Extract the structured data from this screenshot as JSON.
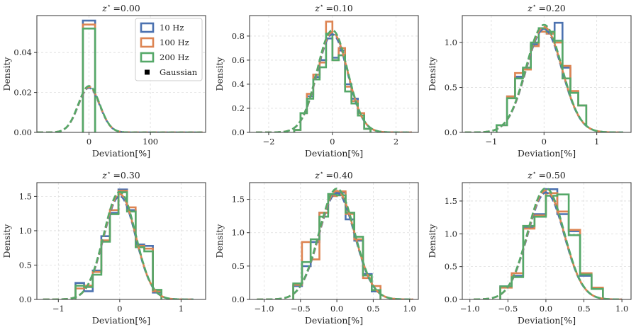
{
  "figure": {
    "colors": {
      "10 Hz": "#4c72b0",
      "100 Hz": "#dd8452",
      "200 Hz": "#55a868"
    },
    "legend": {
      "placement": "top-right of first panel",
      "entries": [
        {
          "label": "10 Hz",
          "color": "#4c72b0"
        },
        {
          "label": "100 Hz",
          "color": "#dd8452"
        },
        {
          "label": "200 Hz",
          "color": "#55a868"
        },
        {
          "label": "Gaussian",
          "color": "#000000"
        }
      ]
    }
  },
  "chart_data": [
    {
      "type": "histogram",
      "title": "z* =0.00",
      "title_value": "=0.00",
      "xlabel": "Deviation[%]",
      "ylabel": "Density",
      "xlim": [
        -85,
        190
      ],
      "ylim": [
        0,
        0.0585
      ],
      "xticks": [
        0,
        100
      ],
      "xtick_labels": [
        "0",
        "100"
      ],
      "yticks": [
        0,
        0.02,
        0.04
      ],
      "ytick_labels": [
        "0.00",
        "0.02",
        "0.04"
      ],
      "gaussian": {
        "mu": 0,
        "sigma": 17.5,
        "xmin": -85,
        "xmax": 185
      },
      "series": [
        {
          "name": "10 Hz",
          "edges": [
            -10,
            0,
            10
          ],
          "values": [
            0.056,
            0.056
          ]
        },
        {
          "name": "100 Hz",
          "edges": [
            -10,
            0,
            10
          ],
          "values": [
            0.054,
            0.054
          ]
        },
        {
          "name": "200 Hz",
          "edges": [
            -10,
            0,
            10
          ],
          "values": [
            0.052,
            0.052
          ]
        }
      ]
    },
    {
      "type": "histogram",
      "title": "z* =0.10",
      "title_value": "=0.10",
      "xlabel": "Deviation[%]",
      "ylabel": "Density",
      "xlim": [
        -2.6,
        2.7
      ],
      "ylim": [
        0,
        0.97
      ],
      "xticks": [
        -2,
        0,
        2
      ],
      "xtick_labels": [
        "−2",
        "0",
        "2"
      ],
      "yticks": [
        0,
        0.2,
        0.4,
        0.6,
        0.8
      ],
      "ytick_labels": [
        "0.0",
        "0.2",
        "0.4",
        "0.6",
        "0.8"
      ],
      "gaussian": {
        "mu": 0,
        "sigma": 0.48,
        "xmin": -2.4,
        "xmax": 2.5
      },
      "series": [
        {
          "name": "10 Hz",
          "edges": [
            -1.2,
            -1.0,
            -0.8,
            -0.6,
            -0.4,
            -0.2,
            0,
            0.2,
            0.4,
            0.6,
            0.8,
            1.0,
            1.2
          ],
          "values": [
            0.02,
            0.16,
            0.3,
            0.46,
            0.6,
            0.78,
            0.62,
            0.68,
            0.4,
            0.28,
            0.16,
            0.03
          ]
        },
        {
          "name": "100 Hz",
          "edges": [
            -1.2,
            -1.0,
            -0.8,
            -0.6,
            -0.4,
            -0.2,
            0,
            0.2,
            0.4,
            0.6,
            0.8,
            1.0,
            1.2
          ],
          "values": [
            0.02,
            0.16,
            0.32,
            0.48,
            0.58,
            0.92,
            0.6,
            0.7,
            0.38,
            0.26,
            0.16,
            0.03
          ]
        },
        {
          "name": "200 Hz",
          "edges": [
            -1.2,
            -1.0,
            -0.8,
            -0.6,
            -0.4,
            -0.2,
            0,
            0.2,
            0.4,
            0.6,
            0.8,
            1.0,
            1.2
          ],
          "values": [
            0.02,
            0.16,
            0.28,
            0.44,
            0.54,
            0.82,
            0.6,
            0.64,
            0.34,
            0.24,
            0.14,
            0.03
          ]
        }
      ]
    },
    {
      "type": "histogram",
      "title": "z* =0.20",
      "title_value": "=0.20",
      "xlabel": "Deviation[%]",
      "ylabel": "Density",
      "xlim": [
        -1.55,
        1.65
      ],
      "ylim": [
        0,
        1.3
      ],
      "xticks": [
        -1,
        0,
        1
      ],
      "xtick_labels": [
        "−1",
        "0",
        "1"
      ],
      "yticks": [
        0,
        0.5,
        1.0
      ],
      "ytick_labels": [
        "0.0",
        "0.5",
        "1.0"
      ],
      "gaussian": {
        "mu": 0,
        "sigma": 0.34,
        "xmin": -1.5,
        "xmax": 1.5
      },
      "series": [
        {
          "name": "10 Hz",
          "edges": [
            -0.9,
            -0.7,
            -0.55,
            -0.4,
            -0.25,
            -0.1,
            0.05,
            0.2,
            0.35,
            0.5,
            0.65,
            0.8
          ],
          "values": [
            0.08,
            0.4,
            0.62,
            0.7,
            0.98,
            1.15,
            1.1,
            1.22,
            0.72,
            0.44,
            0.3,
            0.08
          ]
        },
        {
          "name": "100 Hz",
          "edges": [
            -0.9,
            -0.7,
            -0.55,
            -0.4,
            -0.25,
            -0.1,
            0.05,
            0.2,
            0.35,
            0.5,
            0.65,
            0.8
          ],
          "values": [
            0.08,
            0.4,
            0.66,
            0.7,
            0.96,
            1.12,
            1.1,
            1.0,
            0.74,
            0.46,
            0.3,
            0.08
          ]
        },
        {
          "name": "200 Hz",
          "edges": [
            -0.9,
            -0.7,
            -0.55,
            -0.4,
            -0.25,
            -0.1,
            0.05,
            0.2,
            0.35,
            0.5,
            0.65,
            0.8
          ],
          "values": [
            0.08,
            0.38,
            0.6,
            0.72,
            1.0,
            1.16,
            1.12,
            1.02,
            0.6,
            0.44,
            0.3,
            0.08
          ]
        }
      ]
    },
    {
      "type": "histogram",
      "title": "z* =0.30",
      "title_value": "=0.30",
      "xlabel": "Deviation[%]",
      "ylabel": "Density",
      "xlim": [
        -1.35,
        1.4
      ],
      "ylim": [
        0,
        1.7
      ],
      "xticks": [
        -1,
        0,
        1
      ],
      "xtick_labels": [
        "−1",
        "0",
        "1"
      ],
      "yticks": [
        0,
        0.5,
        1.0,
        1.5
      ],
      "ytick_labels": [
        "0.0",
        "0.5",
        "1.0",
        "1.5"
      ],
      "gaussian": {
        "mu": 0,
        "sigma": 0.26,
        "xmin": -1.25,
        "xmax": 1.2
      },
      "series": [
        {
          "name": "10 Hz",
          "edges": [
            -0.72,
            -0.58,
            -0.44,
            -0.3,
            -0.16,
            -0.02,
            0.12,
            0.26,
            0.4,
            0.54,
            0.68
          ],
          "values": [
            0.24,
            0.12,
            0.42,
            0.92,
            1.26,
            1.6,
            1.3,
            0.8,
            0.78,
            0.1
          ]
        },
        {
          "name": "100 Hz",
          "edges": [
            -0.72,
            -0.58,
            -0.44,
            -0.3,
            -0.16,
            -0.02,
            0.12,
            0.26,
            0.4,
            0.54,
            0.68
          ],
          "values": [
            0.16,
            0.2,
            0.4,
            0.86,
            1.3,
            1.58,
            1.34,
            0.78,
            0.74,
            0.12
          ]
        },
        {
          "name": "200 Hz",
          "edges": [
            -0.72,
            -0.58,
            -0.44,
            -0.3,
            -0.16,
            -0.02,
            0.12,
            0.26,
            0.4,
            0.54,
            0.68
          ],
          "values": [
            0.2,
            0.18,
            0.36,
            0.84,
            1.24,
            1.56,
            1.28,
            0.76,
            0.7,
            0.14
          ]
        }
      ]
    },
    {
      "type": "histogram",
      "title": "z* =0.40",
      "title_value": "=0.40",
      "xlabel": "Deviation[%]",
      "ylabel": "Density",
      "xlim": [
        -1.2,
        1.12
      ],
      "ylim": [
        0,
        1.75
      ],
      "xticks": [
        -1.0,
        -0.5,
        0,
        0.5,
        1.0
      ],
      "xtick_labels": [
        "−1.0",
        "−0.5",
        "0.0",
        "0.5",
        "1.0"
      ],
      "yticks": [
        0,
        0.5,
        1.0,
        1.5
      ],
      "ytick_labels": [
        "0.0",
        "0.5",
        "1.0",
        "1.5"
      ],
      "gaussian": {
        "mu": 0,
        "sigma": 0.245,
        "xmin": -1.1,
        "xmax": 1.05
      },
      "series": [
        {
          "name": "10 Hz",
          "edges": [
            -0.6,
            -0.48,
            -0.36,
            -0.24,
            -0.12,
            0,
            0.12,
            0.24,
            0.36,
            0.48,
            0.6
          ],
          "values": [
            0.2,
            0.5,
            0.86,
            1.3,
            1.56,
            1.6,
            1.2,
            0.88,
            0.38,
            0.12
          ]
        },
        {
          "name": "100 Hz",
          "edges": [
            -0.6,
            -0.48,
            -0.36,
            -0.24,
            -0.12,
            0,
            0.12,
            0.24,
            0.36,
            0.48,
            0.6
          ],
          "values": [
            0.22,
            0.86,
            0.6,
            1.3,
            1.55,
            1.62,
            1.28,
            0.9,
            0.32,
            0.2
          ]
        },
        {
          "name": "200 Hz",
          "edges": [
            -0.6,
            -0.48,
            -0.36,
            -0.24,
            -0.12,
            0,
            0.12,
            0.24,
            0.36,
            0.48,
            0.6
          ],
          "values": [
            0.24,
            0.56,
            0.9,
            1.24,
            1.58,
            1.56,
            1.3,
            0.94,
            0.36,
            0.14
          ]
        }
      ]
    },
    {
      "type": "histogram",
      "title": "z* =0.50",
      "title_value": "=0.50",
      "xlabel": "Deviation[%]",
      "ylabel": "Density",
      "xlim": [
        -1.1,
        1.12
      ],
      "ylim": [
        0,
        1.78
      ],
      "xticks": [
        -1.0,
        -0.5,
        0,
        0.5,
        1.0
      ],
      "xtick_labels": [
        "−1.0",
        "−0.5",
        "0.0",
        "0.5",
        "1.0"
      ],
      "yticks": [
        0,
        0.5,
        1.0,
        1.5
      ],
      "ytick_labels": [
        "0.0",
        "0.5",
        "1.0",
        "1.5"
      ],
      "gaussian": {
        "mu": 0,
        "sigma": 0.24,
        "xmin": -0.95,
        "xmax": 1.0
      },
      "series": [
        {
          "name": "10 Hz",
          "edges": [
            -0.6,
            -0.45,
            -0.3,
            -0.15,
            0,
            0.15,
            0.3,
            0.45,
            0.6,
            0.75
          ],
          "values": [
            0.2,
            0.36,
            1.1,
            1.3,
            1.68,
            1.3,
            1.04,
            0.36,
            0.16
          ]
        },
        {
          "name": "100 Hz",
          "edges": [
            -0.6,
            -0.45,
            -0.3,
            -0.15,
            0,
            0.15,
            0.3,
            0.45,
            0.6,
            0.75
          ],
          "values": [
            0.18,
            0.4,
            1.08,
            1.28,
            1.62,
            1.34,
            1.06,
            0.4,
            0.18
          ]
        },
        {
          "name": "200 Hz",
          "edges": [
            -0.6,
            -0.45,
            -0.3,
            -0.15,
            0,
            0.15,
            0.3,
            0.45,
            0.6,
            0.75
          ],
          "values": [
            0.2,
            0.34,
            1.12,
            1.26,
            1.58,
            1.6,
            0.98,
            0.38,
            0.16
          ]
        }
      ]
    }
  ]
}
